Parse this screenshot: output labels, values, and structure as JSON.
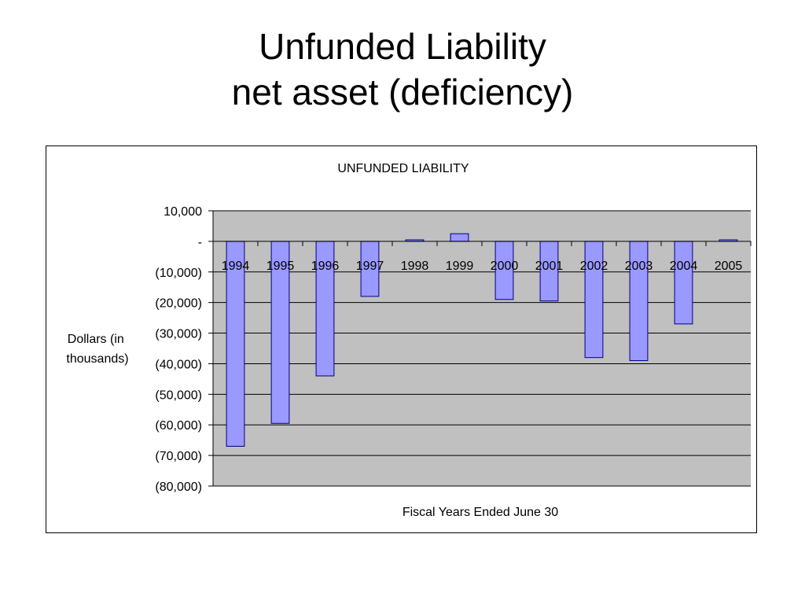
{
  "slide": {
    "title_line1": "Unfunded Liability",
    "title_line2": "net asset (deficiency)"
  },
  "chart_data": {
    "type": "bar",
    "title": "UNFUNDED LIABILITY",
    "xlabel": "Fiscal Years Ended June 30",
    "ylabel_lines": [
      "Dollars (in",
      "thousands)"
    ],
    "categories": [
      "1994",
      "1995",
      "1996",
      "1997",
      "1998",
      "1999",
      "2000",
      "2001",
      "2002",
      "2003",
      "2004",
      "2005"
    ],
    "values": [
      -67000,
      -59500,
      -44000,
      -18000,
      500,
      2500,
      -19000,
      -19500,
      -38000,
      -39000,
      -27000,
      500
    ],
    "ylim": [
      -80000,
      10000
    ],
    "yticks": [
      10000,
      0,
      -10000,
      -20000,
      -30000,
      -40000,
      -50000,
      -60000,
      -70000,
      -80000
    ],
    "ytick_labels": [
      "10,000",
      "-",
      "(10,000)",
      "(20,000)",
      "(30,000)",
      "(40,000)",
      "(50,000)",
      "(60,000)",
      "(70,000)",
      "(80,000)"
    ],
    "gridlines": true,
    "legend": false,
    "colors": {
      "plot_background": "#c0c0c0",
      "bar_fill": "#9999ff",
      "bar_stroke": "#000080",
      "gridline": "#000000"
    }
  }
}
